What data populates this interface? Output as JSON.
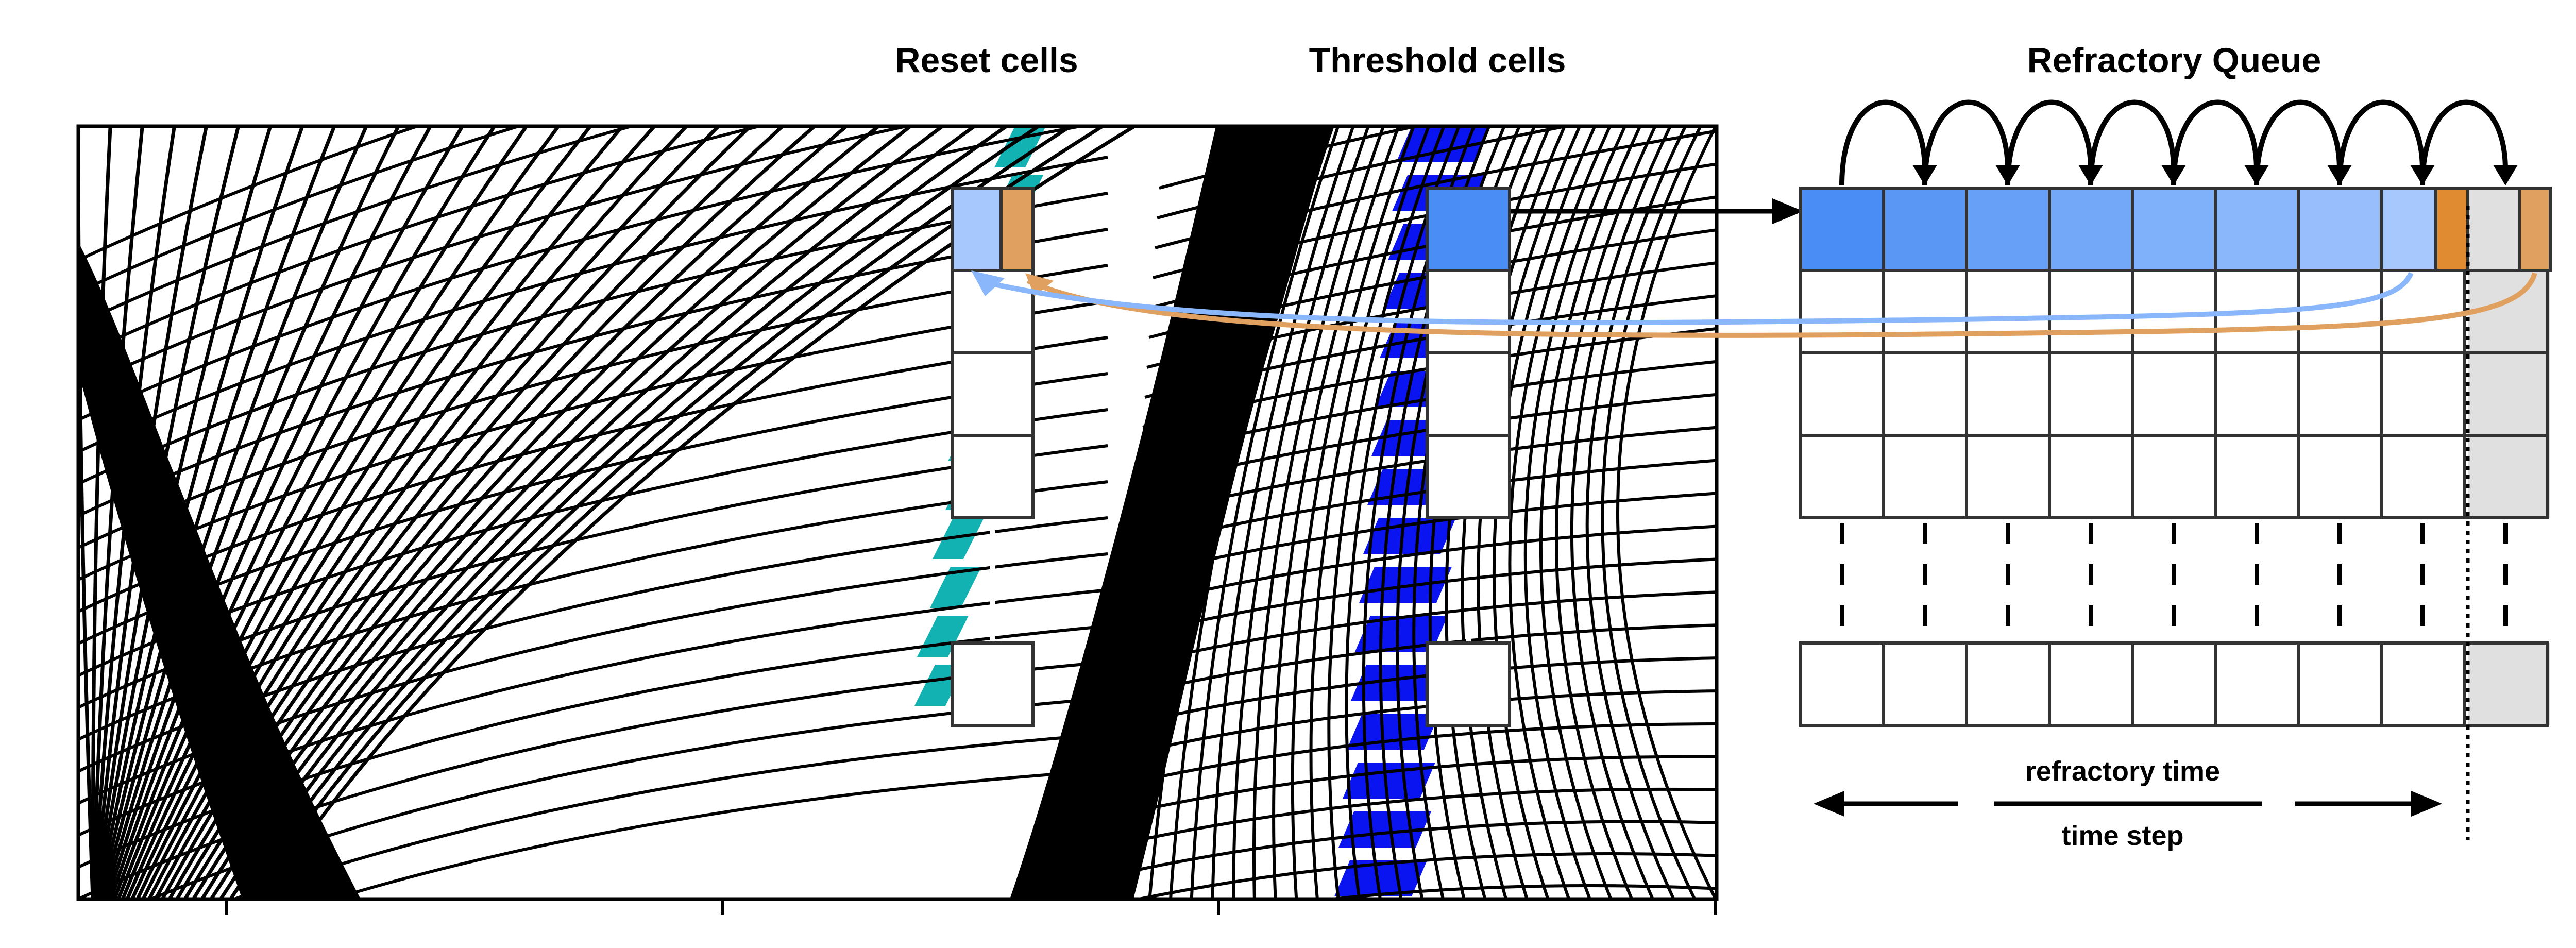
{
  "titles": {
    "reset": "Reset cells",
    "threshold": "Threshold cells",
    "queue": "Refractory Queue"
  },
  "labels": {
    "refractory_time": "refractory time",
    "time_step": "time step"
  },
  "colors": {
    "grid_line": "#000000",
    "reset_fill": "#12b2b2",
    "threshold_fill": "#0a14f0",
    "queue_shades": [
      "#4a8ef5",
      "#5a97f5",
      "#67a0f7",
      "#73a7f8",
      "#7fb0fa",
      "#8ab6fb",
      "#98bffc",
      "#a6c8fd"
    ],
    "orange": "#e0a060",
    "orange_dark": "#e08a32",
    "light_blue": "#a6c8fd",
    "threshold_cell": "#4a8ef5",
    "gray_col": "#e0e0e0"
  },
  "icons": {
    "refractory_arrow": "left-right-arrow-icon",
    "queue_shift": "curved-arrow-icon",
    "connector": "right-arrow-icon"
  }
}
